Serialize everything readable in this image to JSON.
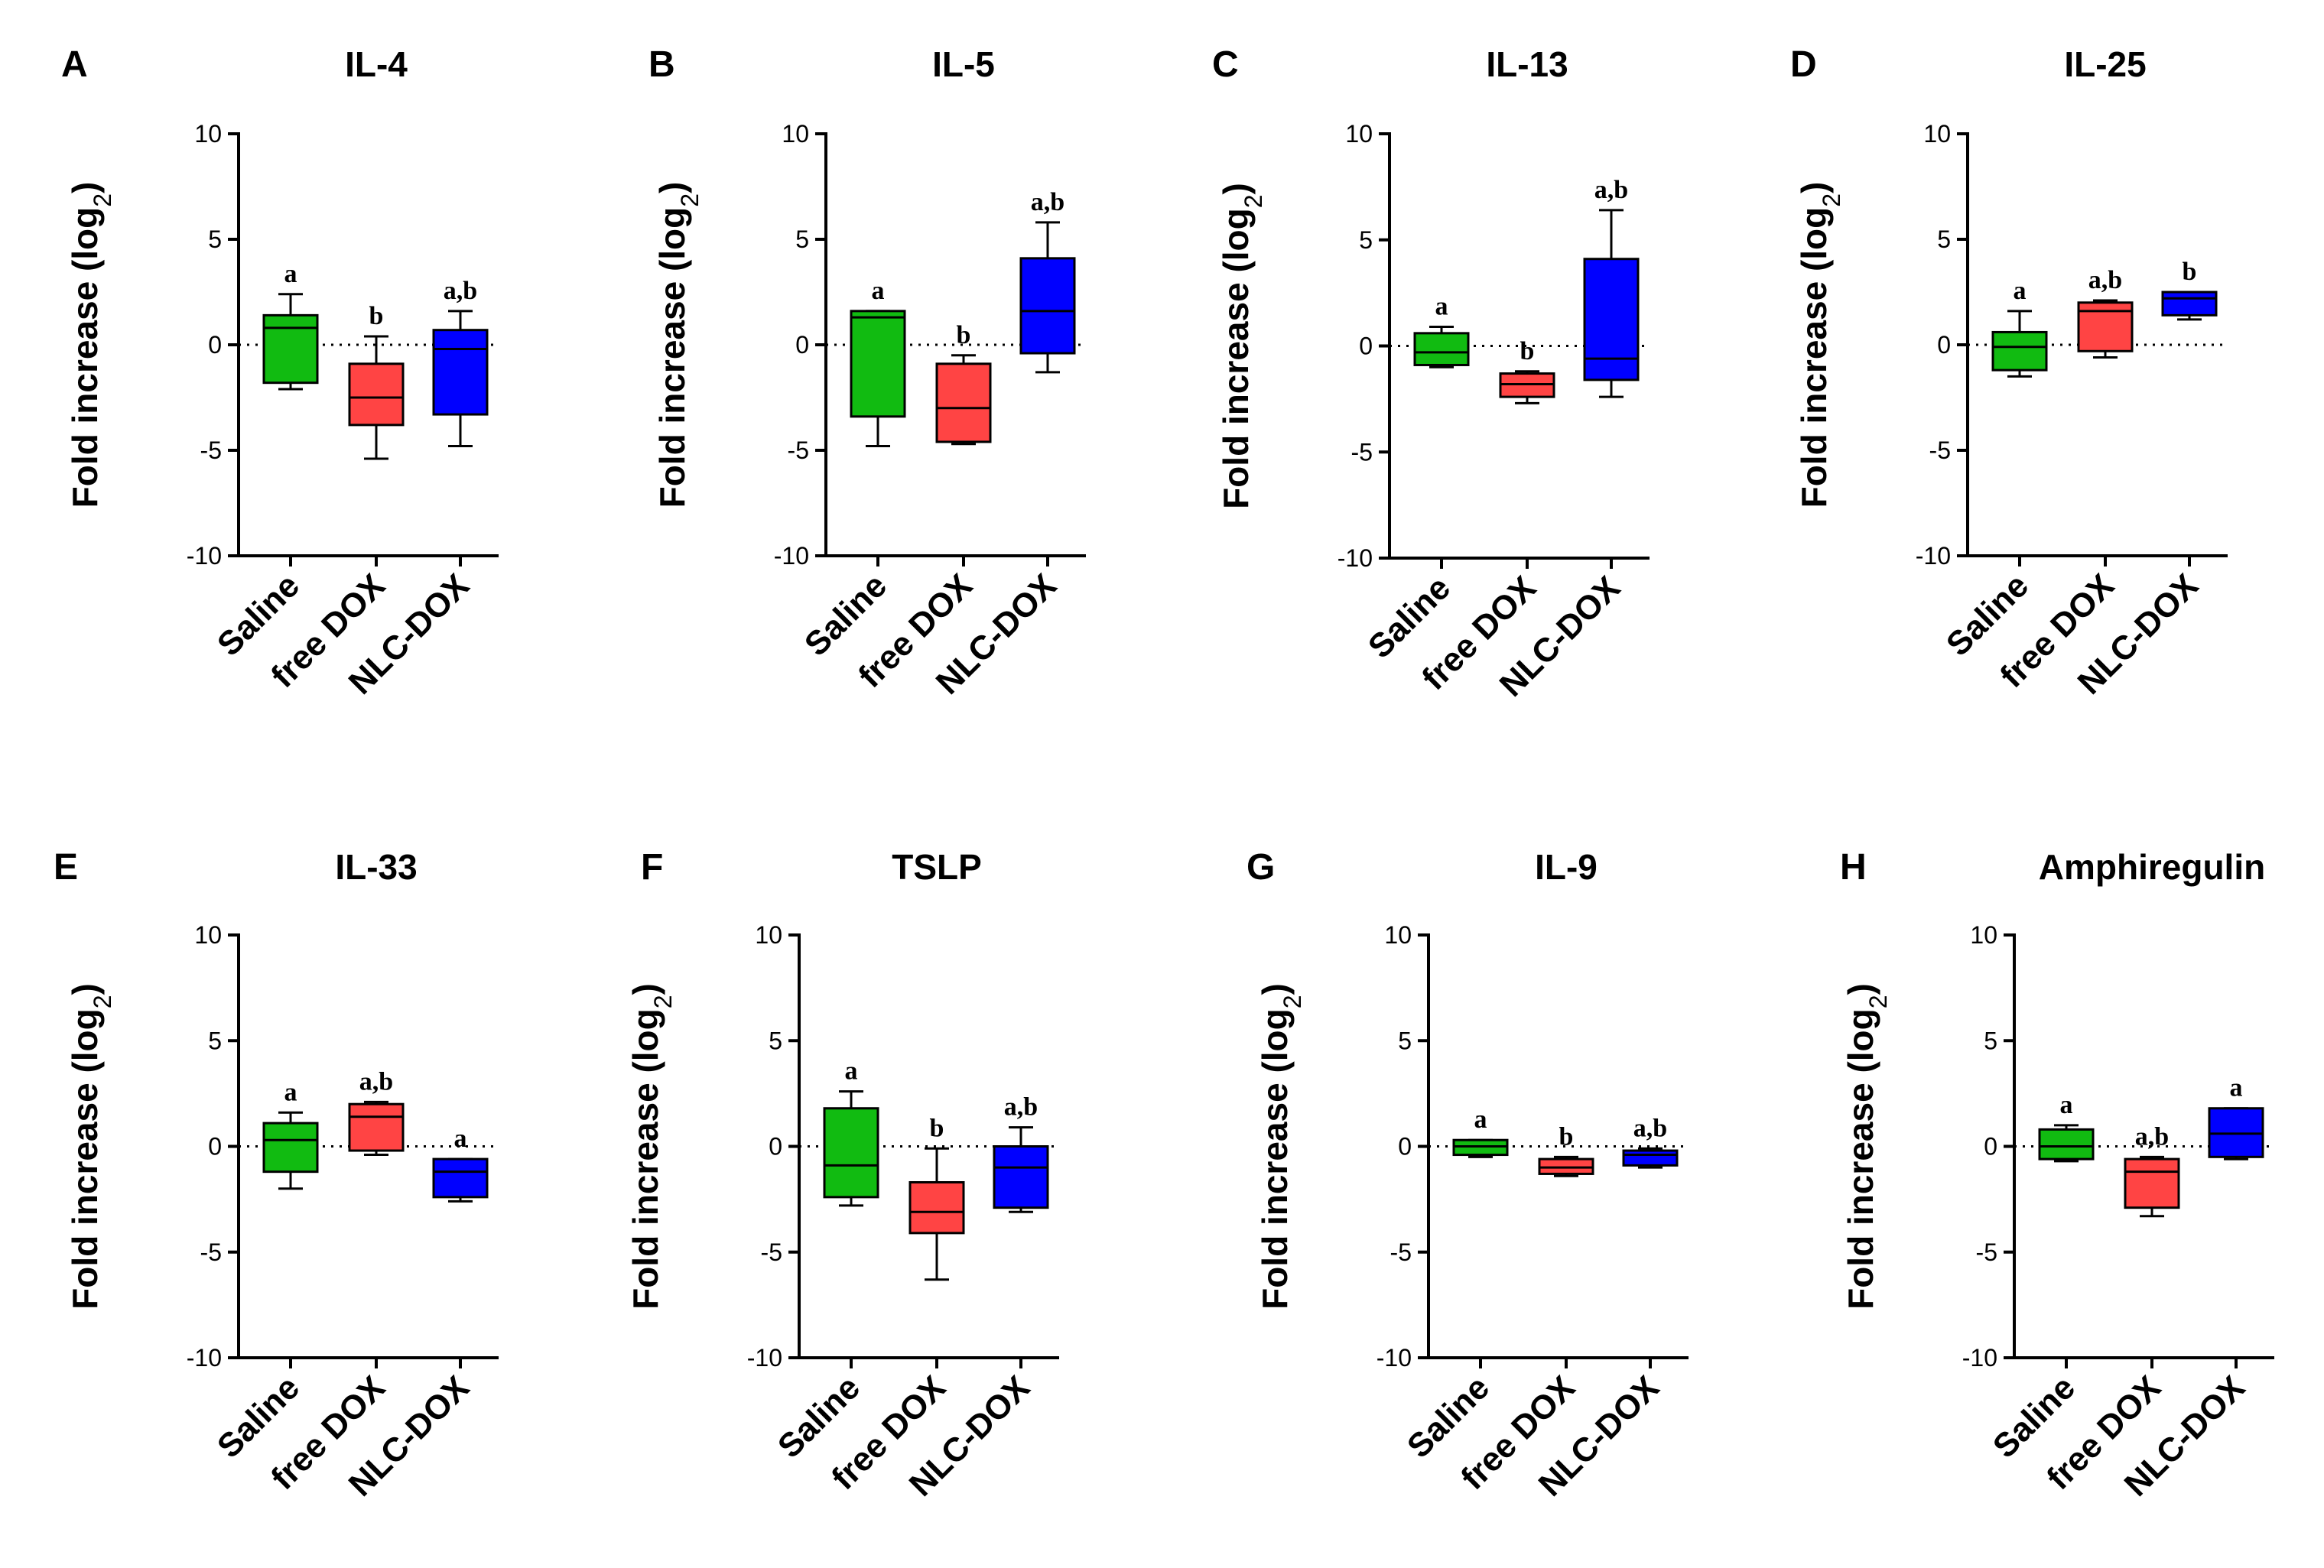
{
  "chart_data": [
    {
      "panel": "A",
      "type": "box",
      "title": "IL-4",
      "ylabel": "Fold increase (log",
      "ylabel_sub": "2",
      "ylabel_end": ")",
      "ylim": [
        -10,
        10
      ],
      "yticks": [
        10,
        5,
        0,
        -5,
        -10
      ],
      "reference_line": 0,
      "categories": [
        "Saline",
        "free DOX",
        "NLC-DOX"
      ],
      "colors": [
        "#11bb11",
        "#ff4444",
        "#0000ff"
      ],
      "boxes": [
        {
          "min": -2.1,
          "q1": -1.8,
          "median": 0.8,
          "q3": 1.4,
          "max": 2.4,
          "label": "a"
        },
        {
          "min": -5.4,
          "q1": -3.8,
          "median": -2.5,
          "q3": -0.9,
          "max": 0.4,
          "label": "b"
        },
        {
          "min": -4.8,
          "q1": -3.3,
          "median": -0.2,
          "q3": 0.7,
          "max": 1.6,
          "label": "a,b"
        }
      ]
    },
    {
      "panel": "B",
      "type": "box",
      "title": "IL-5",
      "ylabel": "Fold increase (log",
      "ylabel_sub": "2",
      "ylabel_end": ")",
      "ylim": [
        -10,
        10
      ],
      "yticks": [
        10,
        5,
        0,
        -5,
        -10
      ],
      "reference_line": 0,
      "categories": [
        "Saline",
        "free DOX",
        "NLC-DOX"
      ],
      "colors": [
        "#11bb11",
        "#ff4444",
        "#0000ff"
      ],
      "boxes": [
        {
          "min": -4.8,
          "q1": -3.4,
          "median": 1.3,
          "q3": 1.6,
          "max": 1.6,
          "label": "a"
        },
        {
          "min": -4.7,
          "q1": -4.6,
          "median": -3.0,
          "q3": -0.9,
          "max": -0.5,
          "label": "b"
        },
        {
          "min": -1.3,
          "q1": -0.4,
          "median": 1.6,
          "q3": 4.1,
          "max": 5.8,
          "label": "a,b"
        }
      ]
    },
    {
      "panel": "C",
      "type": "box",
      "title": "IL-13",
      "ylabel": "Fold increase (log",
      "ylabel_sub": "2",
      "ylabel_end": ")",
      "ylim": [
        -10,
        10
      ],
      "yticks": [
        10,
        5,
        0,
        -5,
        -10
      ],
      "reference_line": 0,
      "categories": [
        "Saline",
        "free DOX",
        "NLC-DOX"
      ],
      "colors": [
        "#11bb11",
        "#ff4444",
        "#0000ff"
      ],
      "boxes": [
        {
          "min": -1.0,
          "q1": -0.9,
          "median": -0.3,
          "q3": 0.6,
          "max": 0.9,
          "label": "a"
        },
        {
          "min": -2.7,
          "q1": -2.4,
          "median": -1.8,
          "q3": -1.3,
          "max": -1.2,
          "label": "b"
        },
        {
          "min": -2.4,
          "q1": -1.6,
          "median": -0.6,
          "q3": 4.1,
          "max": 6.4,
          "label": "a,b"
        }
      ]
    },
    {
      "panel": "D",
      "type": "box",
      "title": "IL-25",
      "ylabel": "Fold increase (log",
      "ylabel_sub": "2",
      "ylabel_end": ")",
      "ylim": [
        -10,
        10
      ],
      "yticks": [
        10,
        5,
        0,
        -5,
        -10
      ],
      "reference_line": 0,
      "categories": [
        "Saline",
        "free DOX",
        "NLC-DOX"
      ],
      "colors": [
        "#11bb11",
        "#ff4444",
        "#0000ff"
      ],
      "boxes": [
        {
          "min": -1.5,
          "q1": -1.2,
          "median": -0.1,
          "q3": 0.6,
          "max": 1.6,
          "label": "a"
        },
        {
          "min": -0.6,
          "q1": -0.3,
          "median": 1.6,
          "q3": 2.0,
          "max": 2.1,
          "label": "a,b"
        },
        {
          "min": 1.2,
          "q1": 1.4,
          "median": 2.2,
          "q3": 2.5,
          "max": 2.5,
          "label": "b"
        }
      ]
    },
    {
      "panel": "E",
      "type": "box",
      "title": "IL-33",
      "ylabel": "Fold increase (log",
      "ylabel_sub": "2",
      "ylabel_end": ")",
      "ylim": [
        -10,
        10
      ],
      "yticks": [
        10,
        5,
        0,
        -5,
        -10
      ],
      "reference_line": 0,
      "categories": [
        "Saline",
        "free DOX",
        "NLC-DOX"
      ],
      "colors": [
        "#11bb11",
        "#ff4444",
        "#0000ff"
      ],
      "boxes": [
        {
          "min": -2.0,
          "q1": -1.2,
          "median": 0.3,
          "q3": 1.1,
          "max": 1.6,
          "label": "a"
        },
        {
          "min": -0.4,
          "q1": -0.2,
          "median": 1.4,
          "q3": 2.0,
          "max": 2.1,
          "label": "a,b"
        },
        {
          "min": -2.6,
          "q1": -2.4,
          "median": -1.2,
          "q3": -0.6,
          "max": -0.6,
          "label": "a"
        }
      ]
    },
    {
      "panel": "F",
      "type": "box",
      "title": "TSLP",
      "ylabel": "Fold increase (log",
      "ylabel_sub": "2",
      "ylabel_end": ")",
      "ylim": [
        -10,
        10
      ],
      "yticks": [
        10,
        5,
        0,
        -5,
        -10
      ],
      "reference_line": 0,
      "categories": [
        "Saline",
        "free DOX",
        "NLC-DOX"
      ],
      "colors": [
        "#11bb11",
        "#ff4444",
        "#0000ff"
      ],
      "boxes": [
        {
          "min": -2.8,
          "q1": -2.4,
          "median": -0.9,
          "q3": 1.8,
          "max": 2.6,
          "label": "a"
        },
        {
          "min": -6.3,
          "q1": -4.1,
          "median": -3.1,
          "q3": -1.7,
          "max": -0.1,
          "label": "b"
        },
        {
          "min": -3.1,
          "q1": -2.9,
          "median": -1.0,
          "q3": 0.0,
          "max": 0.9,
          "label": "a,b"
        }
      ]
    },
    {
      "panel": "G",
      "type": "box",
      "title": "IL-9",
      "ylabel": "Fold increase (log",
      "ylabel_sub": "2",
      "ylabel_end": ")",
      "ylim": [
        -10,
        10
      ],
      "yticks": [
        10,
        5,
        0,
        -5,
        -10
      ],
      "reference_line": 0,
      "categories": [
        "Saline",
        "free DOX",
        "NLC-DOX"
      ],
      "colors": [
        "#11bb11",
        "#ff4444",
        "#0000ff"
      ],
      "boxes": [
        {
          "min": -0.5,
          "q1": -0.4,
          "median": 0.0,
          "q3": 0.3,
          "max": 0.3,
          "label": "a"
        },
        {
          "min": -1.4,
          "q1": -1.3,
          "median": -1.0,
          "q3": -0.6,
          "max": -0.5,
          "label": "b"
        },
        {
          "min": -1.0,
          "q1": -0.9,
          "median": -0.4,
          "q3": -0.2,
          "max": -0.1,
          "label": "a,b"
        }
      ]
    },
    {
      "panel": "H",
      "type": "box",
      "title": "Amphiregulin",
      "ylabel": "Fold increase (log",
      "ylabel_sub": "2",
      "ylabel_end": ")",
      "ylim": [
        -10,
        10
      ],
      "yticks": [
        10,
        5,
        0,
        -5,
        -10
      ],
      "reference_line": 0,
      "categories": [
        "Saline",
        "free DOX",
        "NLC-DOX"
      ],
      "colors": [
        "#11bb11",
        "#ff4444",
        "#0000ff"
      ],
      "boxes": [
        {
          "min": -0.7,
          "q1": -0.6,
          "median": 0.0,
          "q3": 0.8,
          "max": 1.0,
          "label": "a"
        },
        {
          "min": -3.3,
          "q1": -2.9,
          "median": -1.2,
          "q3": -0.6,
          "max": -0.5,
          "label": "a,b"
        },
        {
          "min": -0.6,
          "q1": -0.5,
          "median": 0.6,
          "q3": 1.8,
          "max": 1.8,
          "label": "a"
        }
      ]
    }
  ]
}
